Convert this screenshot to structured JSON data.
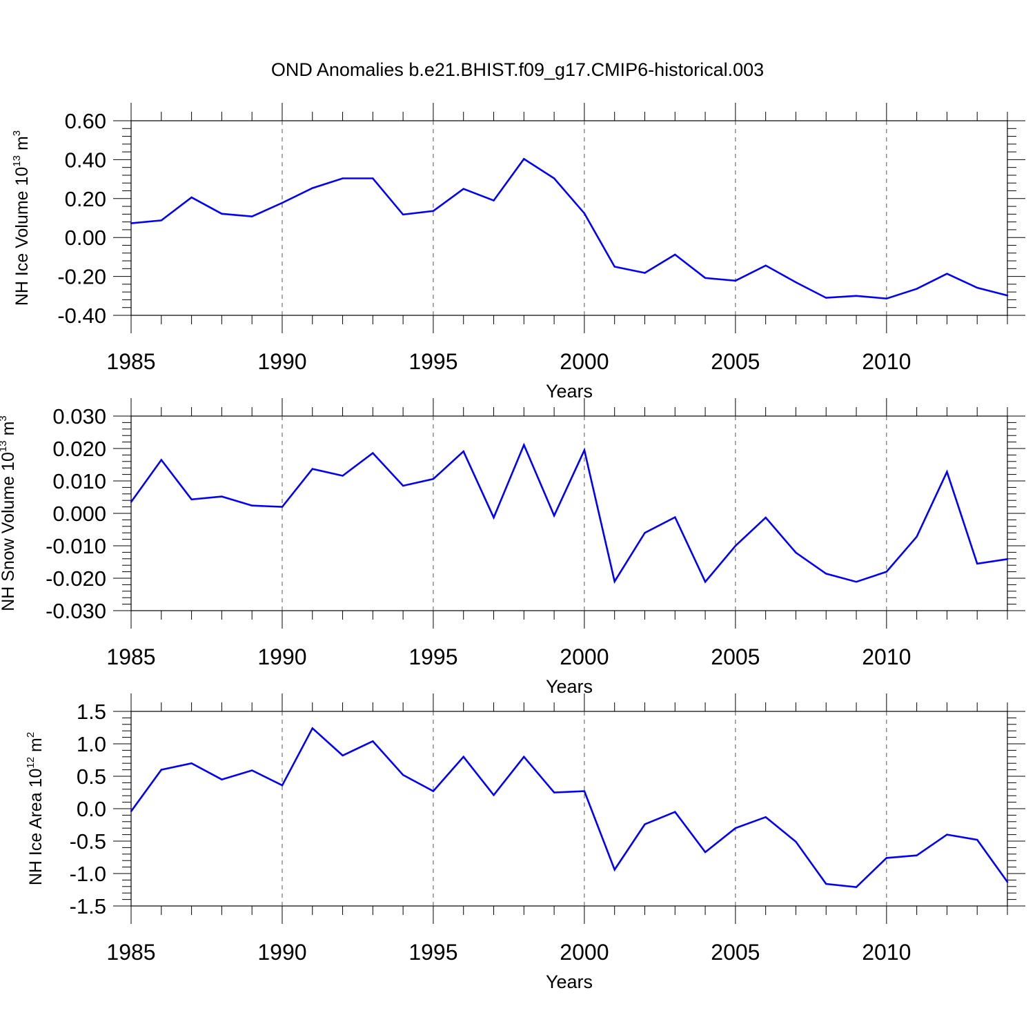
{
  "title": "OND Anomalies b.e21.BHIST.f09_g17.CMIP6-historical.003",
  "chart_data": [
    {
      "type": "line",
      "ylabel": {
        "base": "NH Ice Volume 10",
        "exp": "13",
        "unit": " m",
        "unit_exp": "3"
      },
      "xlabel": "Years",
      "xlim": [
        1985,
        2014
      ],
      "ylim": [
        -0.4,
        0.6
      ],
      "xticks": [
        "1985",
        "1990",
        "1995",
        "2000",
        "2005",
        "2010"
      ],
      "yticks": [
        "0.60",
        "0.40",
        "0.20",
        "0.00",
        "-0.20",
        "-0.40"
      ],
      "color": "#0000ff",
      "x": [
        1985,
        1986,
        1987,
        1988,
        1989,
        1990,
        1991,
        1992,
        1993,
        1994,
        1995,
        1996,
        1997,
        1998,
        1999,
        2000,
        2001,
        2002,
        2003,
        2004,
        2005,
        2006,
        2007,
        2008,
        2009,
        2010,
        2011,
        2012,
        2013,
        2014
      ],
      "values": [
        0.073,
        0.088,
        0.206,
        0.122,
        0.108,
        0.178,
        0.254,
        0.304,
        0.304,
        0.118,
        0.136,
        0.25,
        0.19,
        0.404,
        0.304,
        0.124,
        -0.15,
        -0.182,
        -0.088,
        -0.208,
        -0.222,
        -0.144,
        -0.23,
        -0.31,
        -0.3,
        -0.314,
        -0.264,
        -0.186,
        -0.258,
        -0.298
      ]
    },
    {
      "type": "line",
      "ylabel": {
        "base": "NH Snow Volume 10",
        "exp": "13",
        "unit": " m",
        "unit_exp": "3"
      },
      "xlabel": "Years",
      "xlim": [
        1985,
        2014
      ],
      "ylim": [
        -0.03,
        0.03
      ],
      "xticks": [
        "1985",
        "1990",
        "1995",
        "2000",
        "2005",
        "2010"
      ],
      "yticks": [
        "0.030",
        "0.020",
        "0.010",
        "0.000",
        "-0.010",
        "-0.020",
        "-0.030"
      ],
      "color": "#0000ff",
      "x": [
        1985,
        1986,
        1987,
        1988,
        1989,
        1990,
        1991,
        1992,
        1993,
        1994,
        1995,
        1996,
        1997,
        1998,
        1999,
        2000,
        2001,
        2002,
        2003,
        2004,
        2005,
        2006,
        2007,
        2008,
        2009,
        2010,
        2011,
        2012,
        2013,
        2014
      ],
      "values": [
        0.0035,
        0.0165,
        0.0043,
        0.0052,
        0.0024,
        0.002,
        0.0137,
        0.0116,
        0.0186,
        0.0085,
        0.0106,
        0.0191,
        -0.0013,
        0.0211,
        -0.0007,
        0.0195,
        -0.021,
        -0.006,
        -0.0012,
        -0.0211,
        -0.01,
        -0.0013,
        -0.0121,
        -0.0186,
        -0.0211,
        -0.018,
        -0.0072,
        0.0128,
        -0.0155,
        -0.0141
      ]
    },
    {
      "type": "line",
      "ylabel": {
        "base": "NH Ice Area 10",
        "exp": "12",
        "unit": " m",
        "unit_exp": "2"
      },
      "xlabel": "Years",
      "xlim": [
        1985,
        2014
      ],
      "ylim": [
        -1.5,
        1.5
      ],
      "xticks": [
        "1985",
        "1990",
        "1995",
        "2000",
        "2005",
        "2010"
      ],
      "yticks": [
        "1.5",
        "1.0",
        "0.5",
        "0.0",
        "-0.5",
        "-1.0",
        "-1.5"
      ],
      "color": "#0000ff",
      "x": [
        1985,
        1986,
        1987,
        1988,
        1989,
        1990,
        1991,
        1992,
        1993,
        1994,
        1995,
        1996,
        1997,
        1998,
        1999,
        2000,
        2001,
        2002,
        2003,
        2004,
        2005,
        2006,
        2007,
        2008,
        2009,
        2010,
        2011,
        2012,
        2013,
        2014
      ],
      "values": [
        -0.04,
        0.6,
        0.7,
        0.45,
        0.59,
        0.36,
        1.24,
        0.82,
        1.04,
        0.52,
        0.27,
        0.8,
        0.21,
        0.8,
        0.25,
        0.27,
        -0.94,
        -0.24,
        -0.05,
        -0.67,
        -0.3,
        -0.13,
        -0.51,
        -1.16,
        -1.21,
        -0.76,
        -0.72,
        -0.4,
        -0.48,
        -1.13
      ]
    }
  ]
}
